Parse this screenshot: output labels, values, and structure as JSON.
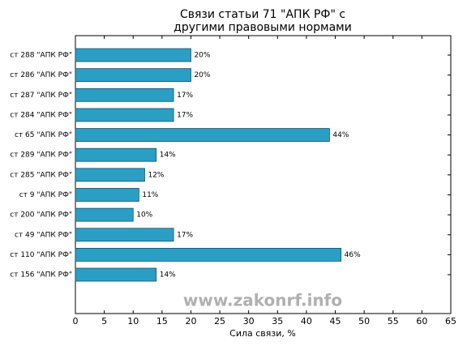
{
  "chart_data": {
    "type": "barh",
    "title": [
      "Связи статьи 71 \"АПК РФ\" с",
      "другими правовыми нормами"
    ],
    "categories": [
      "ст 288 \"АПК РФ\"",
      "ст 286 \"АПК РФ\"",
      "ст 287 \"АПК РФ\"",
      "ст 284 \"АПК РФ\"",
      "ст 65 \"АПК РФ\"",
      "ст 289 \"АПК РФ\"",
      "ст 285 \"АПК РФ\"",
      "ст 9 \"АПК РФ\"",
      "ст 200 \"АПК РФ\"",
      "ст 49 \"АПК РФ\"",
      "ст 110 \"АПК РФ\"",
      "ст 156 \"АПК РФ\""
    ],
    "values": [
      20,
      20,
      17,
      17,
      44,
      14,
      12,
      11,
      10,
      17,
      46,
      14
    ],
    "value_labels": [
      "20%",
      "20%",
      "17%",
      "17%",
      "44%",
      "14%",
      "12%",
      "11%",
      "10%",
      "17%",
      "46%",
      "14%"
    ],
    "color": "#2b9fc3",
    "xlabel": "Сила связи, %",
    "xlim": [
      0,
      65
    ],
    "xticks": [
      0,
      5,
      10,
      15,
      20,
      25,
      30,
      35,
      40,
      45,
      50,
      55,
      60,
      65
    ],
    "watermark": "www.zakonrf.info"
  }
}
